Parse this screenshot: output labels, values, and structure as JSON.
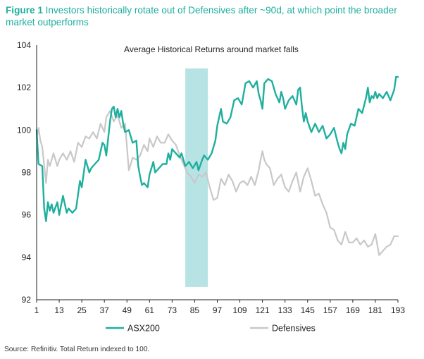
{
  "figure": {
    "number": "Figure 1",
    "caption": "Investors historically rotate out of Defensives after ~90d, at which point the broader market outperforms",
    "source": "Source: Refinitiv. Total Return indexed to 100."
  },
  "colors": {
    "asx": "#1eaf9e",
    "def": "#c8c8c8",
    "band": "#b8e3e4",
    "axis": "#222222"
  },
  "chart_data": {
    "type": "line",
    "title": "Average Historical Returns around market falls",
    "xlabel": "",
    "ylabel": "",
    "xlim": [
      1,
      193
    ],
    "ylim": [
      92,
      104
    ],
    "yticks": [
      92,
      94,
      96,
      98,
      100,
      102,
      104
    ],
    "xticks": [
      1,
      13,
      25,
      37,
      49,
      61,
      73,
      85,
      97,
      109,
      121,
      133,
      145,
      157,
      169,
      181,
      193
    ],
    "grid": false,
    "legend": "bottom",
    "highlight_band": {
      "x_start": 80,
      "x_end": 92,
      "y_start": 92.6,
      "y_end": 102.9
    },
    "series": [
      {
        "name": "ASX200",
        "color": "#1eaf9e",
        "x": [
          1,
          2,
          4,
          5,
          6,
          7,
          8,
          9,
          10,
          12,
          13,
          15,
          17,
          18,
          20,
          22,
          24,
          25,
          27,
          29,
          30,
          32,
          34,
          36,
          37,
          38,
          40,
          41,
          42,
          43,
          44,
          45,
          46,
          47,
          48,
          50,
          52,
          54,
          55,
          56,
          57,
          58,
          60,
          61,
          63,
          64,
          66,
          68,
          70,
          71,
          72,
          73,
          75,
          77,
          78,
          80,
          82,
          84,
          86,
          87,
          89,
          90,
          92,
          94,
          96,
          97,
          99,
          100,
          102,
          104,
          106,
          108,
          110,
          112,
          114,
          116,
          118,
          119,
          120,
          121,
          122,
          124,
          126,
          128,
          129,
          130,
          131,
          132,
          133,
          135,
          137,
          139,
          140,
          141,
          142,
          143,
          144,
          145,
          147,
          149,
          151,
          153,
          155,
          157,
          159,
          161,
          162,
          163,
          164,
          165,
          166,
          168,
          170,
          172,
          174,
          176,
          177,
          178,
          179,
          180,
          181,
          182,
          183,
          185,
          187,
          189,
          191,
          192,
          193
        ],
        "values": [
          100.0,
          98.4,
          98.3,
          96.3,
          95.7,
          96.6,
          96.2,
          96.5,
          96.1,
          96.6,
          96.0,
          96.9,
          96.1,
          96.3,
          96.1,
          96.3,
          97.6,
          97.3,
          98.6,
          98.0,
          98.2,
          98.4,
          98.6,
          99.4,
          99.3,
          98.8,
          100.4,
          101.0,
          101.1,
          100.6,
          101.0,
          100.6,
          100.9,
          100.3,
          99.9,
          100.0,
          99.4,
          99.5,
          98.3,
          97.8,
          97.4,
          97.5,
          97.3,
          97.9,
          98.5,
          98.0,
          98.2,
          98.4,
          98.4,
          98.9,
          98.6,
          99.1,
          98.9,
          98.7,
          98.9,
          98.3,
          98.5,
          98.2,
          98.5,
          98.1,
          98.6,
          98.8,
          98.6,
          98.9,
          99.5,
          100.2,
          101.0,
          100.4,
          100.3,
          100.6,
          101.4,
          101.5,
          101.2,
          102.2,
          102.3,
          102.0,
          102.3,
          101.7,
          101.4,
          101.0,
          102.2,
          102.4,
          102.3,
          101.7,
          101.5,
          101.3,
          101.8,
          101.5,
          101.0,
          101.4,
          101.6,
          101.2,
          101.9,
          102.0,
          101.1,
          100.4,
          100.8,
          100.4,
          99.9,
          100.3,
          99.9,
          100.2,
          99.6,
          99.8,
          100.1,
          99.4,
          99.1,
          98.9,
          99.4,
          99.1,
          99.8,
          100.3,
          100.2,
          101.0,
          100.8,
          101.5,
          102.0,
          101.3,
          101.6,
          101.5,
          101.8,
          101.5,
          101.7,
          101.5,
          101.8,
          101.4,
          101.9,
          102.5,
          102.5
        ]
      },
      {
        "name": "Defensives",
        "color": "#c8c8c8",
        "x": [
          1,
          2,
          3,
          4,
          6,
          7,
          8,
          10,
          12,
          13,
          15,
          17,
          19,
          21,
          23,
          25,
          27,
          29,
          31,
          33,
          35,
          37,
          38,
          40,
          42,
          44,
          46,
          48,
          50,
          52,
          54,
          56,
          58,
          60,
          61,
          63,
          65,
          67,
          69,
          71,
          73,
          75,
          77,
          79,
          81,
          83,
          85,
          87,
          89,
          91,
          93,
          95,
          97,
          99,
          101,
          103,
          105,
          107,
          109,
          111,
          113,
          115,
          117,
          119,
          120,
          121,
          122,
          123,
          125,
          127,
          129,
          131,
          133,
          135,
          137,
          139,
          141,
          143,
          145,
          147,
          149,
          151,
          153,
          155,
          157,
          159,
          161,
          163,
          165,
          167,
          169,
          171,
          173,
          175,
          177,
          179,
          181,
          183,
          185,
          187,
          189,
          191,
          193
        ],
        "values": [
          99.6,
          100.1,
          99.5,
          99.2,
          97.5,
          98.6,
          98.3,
          98.9,
          98.3,
          98.6,
          98.9,
          98.6,
          99.0,
          98.5,
          99.4,
          99.2,
          99.7,
          99.6,
          99.9,
          99.6,
          100.3,
          99.9,
          100.6,
          100.9,
          100.4,
          100.7,
          100.1,
          100.3,
          98.1,
          98.7,
          98.6,
          98.8,
          99.3,
          99.0,
          99.6,
          99.2,
          99.7,
          99.4,
          99.4,
          99.8,
          99.5,
          99.3,
          98.8,
          98.4,
          98.0,
          97.8,
          97.5,
          97.9,
          97.8,
          98.0,
          97.3,
          96.7,
          96.8,
          97.7,
          97.4,
          97.9,
          97.6,
          97.1,
          97.5,
          97.6,
          97.4,
          97.8,
          97.4,
          98.1,
          98.6,
          99.0,
          98.6,
          98.4,
          98.2,
          97.4,
          97.7,
          97.9,
          97.3,
          97.1,
          97.6,
          98.0,
          97.1,
          97.8,
          98.2,
          97.6,
          96.9,
          97.0,
          96.5,
          96.1,
          95.4,
          95.3,
          94.8,
          94.6,
          95.2,
          94.7,
          94.7,
          94.9,
          94.6,
          94.8,
          94.5,
          94.6,
          95.1,
          94.1,
          94.3,
          94.5,
          94.6,
          95.0,
          95.0
        ]
      }
    ]
  }
}
